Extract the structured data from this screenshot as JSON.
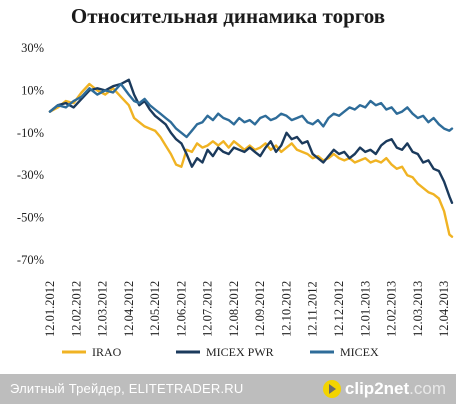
{
  "chart_data": {
    "type": "line",
    "title": "Относительная динамика торгов",
    "xlabel": "",
    "ylabel": "",
    "ylim": [
      -70,
      30
    ],
    "yticks": [
      30,
      10,
      -10,
      -30,
      -50,
      -70
    ],
    "ytick_labels": [
      "30%",
      "10%",
      "-10%",
      "-30%",
      "-50%",
      "-70%"
    ],
    "x_tick_labels": [
      "12.01.2012",
      "12.02.2012",
      "12.03.2012",
      "12.04.2012",
      "12.05.2012",
      "12.06.2012",
      "12.07.2012",
      "12.08.2012",
      "12.09.2012",
      "12.10.2012",
      "12.11.2012",
      "12.12.2012",
      "12.01.2013",
      "12.02.2013",
      "12.03.2013",
      "12.04.2013"
    ],
    "x_range": [
      0,
      15.3
    ],
    "grid": false,
    "legend": "bottom",
    "series": [
      {
        "name": "IRAO",
        "color": "#f0b323",
        "x": [
          0,
          0.3,
          0.6,
          0.9,
          1.2,
          1.5,
          1.8,
          2.1,
          2.4,
          2.7,
          3.0,
          3.2,
          3.4,
          3.6,
          3.8,
          4.0,
          4.2,
          4.4,
          4.6,
          4.8,
          5.0,
          5.2,
          5.4,
          5.6,
          5.8,
          6.0,
          6.2,
          6.4,
          6.6,
          6.8,
          7.0,
          7.2,
          7.4,
          7.6,
          7.8,
          8.0,
          8.2,
          8.4,
          8.6,
          8.8,
          9.0,
          9.2,
          9.4,
          9.6,
          9.8,
          10.0,
          10.2,
          10.4,
          10.6,
          10.8,
          11.0,
          11.2,
          11.4,
          11.6,
          11.8,
          12.0,
          12.2,
          12.4,
          12.6,
          12.8,
          13.0,
          13.2,
          13.4,
          13.6,
          13.8,
          14.0,
          14.2,
          14.4,
          14.6,
          14.8,
          15.0,
          15.2,
          15.3
        ],
        "y": [
          0,
          2,
          5,
          4,
          9,
          13,
          10,
          8,
          11,
          7,
          3,
          -3,
          -5,
          -7,
          -8,
          -9,
          -12,
          -16,
          -20,
          -25,
          -26,
          -18,
          -19,
          -15,
          -17,
          -16,
          -14,
          -16,
          -14,
          -17,
          -14,
          -16,
          -18,
          -16,
          -18,
          -17,
          -15,
          -18,
          -16,
          -19,
          -17,
          -15,
          -18,
          -19,
          -20,
          -22,
          -21,
          -23,
          -22,
          -20,
          -22,
          -23,
          -22,
          -24,
          -23,
          -22,
          -24,
          -23,
          -24,
          -22,
          -25,
          -27,
          -26,
          -30,
          -31,
          -34,
          -36,
          -38,
          -39,
          -41,
          -47,
          -58,
          -59
        ]
      },
      {
        "name": "MICEX PWR",
        "color": "#1b3a5c",
        "x": [
          0,
          0.3,
          0.6,
          0.9,
          1.2,
          1.5,
          1.8,
          2.1,
          2.4,
          2.7,
          3.0,
          3.2,
          3.4,
          3.6,
          3.8,
          4.0,
          4.2,
          4.4,
          4.6,
          4.8,
          5.0,
          5.2,
          5.4,
          5.6,
          5.8,
          6.0,
          6.2,
          6.4,
          6.6,
          6.8,
          7.0,
          7.2,
          7.4,
          7.6,
          7.8,
          8.0,
          8.2,
          8.4,
          8.6,
          8.8,
          9.0,
          9.2,
          9.4,
          9.6,
          9.8,
          10.0,
          10.2,
          10.4,
          10.6,
          10.8,
          11.0,
          11.2,
          11.4,
          11.6,
          11.8,
          12.0,
          12.2,
          12.4,
          12.6,
          12.8,
          13.0,
          13.2,
          13.4,
          13.6,
          13.8,
          14.0,
          14.2,
          14.4,
          14.6,
          14.8,
          15.0,
          15.2,
          15.3
        ],
        "y": [
          0,
          3,
          4,
          2,
          6,
          10,
          11,
          10,
          12,
          13,
          15,
          8,
          3,
          5,
          1,
          -2,
          -4,
          -6,
          -10,
          -13,
          -15,
          -20,
          -26,
          -22,
          -24,
          -18,
          -21,
          -17,
          -19,
          -20,
          -17,
          -18,
          -19,
          -17,
          -19,
          -21,
          -17,
          -14,
          -19,
          -16,
          -10,
          -13,
          -12,
          -15,
          -14,
          -20,
          -22,
          -24,
          -21,
          -18,
          -20,
          -19,
          -22,
          -20,
          -17,
          -19,
          -18,
          -20,
          -16,
          -14,
          -13,
          -17,
          -18,
          -15,
          -19,
          -20,
          -24,
          -23,
          -27,
          -28,
          -33,
          -40,
          -43
        ]
      },
      {
        "name": "MICEX",
        "color": "#2e6c99",
        "x": [
          0,
          0.3,
          0.6,
          0.9,
          1.2,
          1.5,
          1.8,
          2.1,
          2.4,
          2.7,
          3.0,
          3.2,
          3.4,
          3.6,
          3.8,
          4.0,
          4.2,
          4.4,
          4.6,
          4.8,
          5.0,
          5.2,
          5.4,
          5.6,
          5.8,
          6.0,
          6.2,
          6.4,
          6.6,
          6.8,
          7.0,
          7.2,
          7.4,
          7.6,
          7.8,
          8.0,
          8.2,
          8.4,
          8.6,
          8.8,
          9.0,
          9.2,
          9.4,
          9.6,
          9.8,
          10.0,
          10.2,
          10.4,
          10.6,
          10.8,
          11.0,
          11.2,
          11.4,
          11.6,
          11.8,
          12.0,
          12.2,
          12.4,
          12.6,
          12.8,
          13.0,
          13.2,
          13.4,
          13.6,
          13.8,
          14.0,
          14.2,
          14.4,
          14.6,
          14.8,
          15.0,
          15.2,
          15.3
        ],
        "y": [
          0,
          3,
          2,
          5,
          7,
          11,
          8,
          10,
          9,
          13,
          8,
          5,
          4,
          6,
          3,
          1,
          -1,
          -3,
          -5,
          -8,
          -10,
          -12,
          -9,
          -6,
          -5,
          -2,
          -4,
          -1,
          -3,
          -4,
          -6,
          -3,
          -5,
          -4,
          -6,
          -3,
          -2,
          -4,
          -3,
          -1,
          -2,
          -4,
          -3,
          -2,
          -5,
          -6,
          -4,
          -7,
          -3,
          -1,
          -2,
          0,
          2,
          1,
          3,
          2,
          5,
          3,
          4,
          1,
          2,
          -1,
          0,
          2,
          -1,
          -3,
          -2,
          -5,
          -3,
          -6,
          -8,
          -9,
          -8
        ]
      }
    ]
  },
  "footer": {
    "caption": "Элитный Трейдер, ELITETRADER.RU",
    "brand_main": "clip2net",
    "brand_suffix": ".com"
  }
}
